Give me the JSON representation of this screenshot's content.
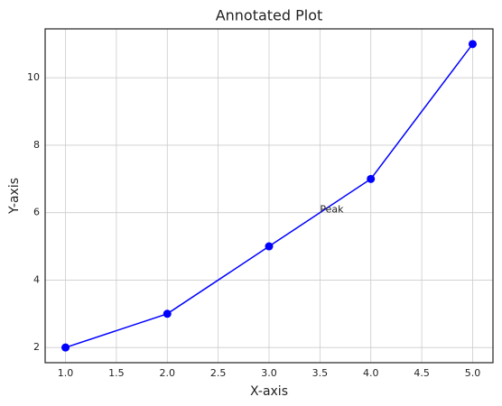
{
  "chart_data": {
    "type": "line",
    "title": "Annotated Plot",
    "x_label": "X-axis",
    "y_label": "Y-axis",
    "x": [
      1,
      2,
      3,
      4,
      5
    ],
    "values": [
      2,
      3,
      5,
      7,
      11
    ],
    "color": "#0000ff",
    "xlim": [
      0.8,
      5.2
    ],
    "xticks": [
      {
        "value": 1,
        "label": "1.0"
      },
      {
        "value": 1.5,
        "label": "1.5"
      },
      {
        "value": 2,
        "label": "2.0"
      },
      {
        "value": 2.5,
        "label": "2.5"
      },
      {
        "value": 3,
        "label": "3.0"
      },
      {
        "value": 3.5,
        "label": "3.5"
      },
      {
        "value": 4,
        "label": "4.0"
      },
      {
        "value": 4.5,
        "label": "4.5"
      },
      {
        "value": 5,
        "label": "5.0"
      }
    ],
    "ylim": [
      1.55,
      11.45
    ],
    "yticks": [
      2,
      4,
      6,
      8,
      10
    ],
    "grid": true,
    "annotations": [
      {
        "text": "Peak",
        "x": 3.5,
        "y": 6
      }
    ]
  }
}
